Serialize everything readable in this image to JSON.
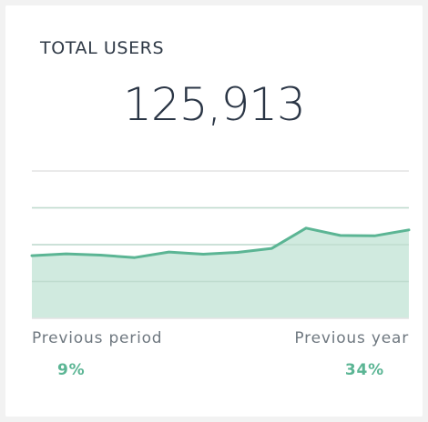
{
  "card": {
    "title": "TOTAL USERS",
    "value": "125,913"
  },
  "chart_data": {
    "type": "area",
    "x": [
      0,
      1,
      2,
      3,
      4,
      5,
      6,
      7,
      8,
      9,
      10,
      11
    ],
    "values": [
      54,
      55,
      54.3,
      53,
      56,
      54.8,
      55.8,
      58,
      69,
      65,
      64.8,
      68
    ],
    "ylim": [
      20,
      100
    ],
    "grid": true,
    "line_color": "#5bb594",
    "fill_color": "#d0eadf"
  },
  "comparisons": {
    "previous_period": {
      "label": "Previous period",
      "value": "9%"
    },
    "previous_year": {
      "label": "Previous year",
      "value": "34%"
    }
  },
  "colors": {
    "accent": "#5bb594",
    "text_dark": "#2a3545",
    "text_muted": "#6f7880"
  }
}
